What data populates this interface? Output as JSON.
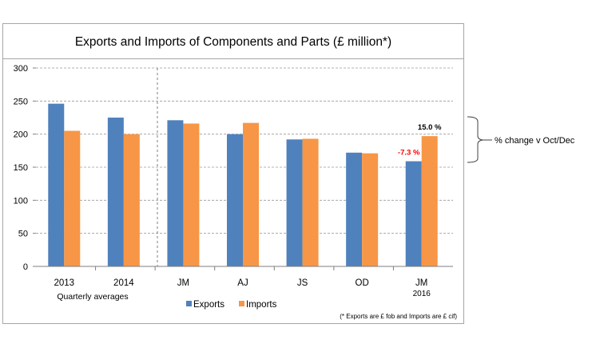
{
  "chart_data": {
    "type": "bar",
    "title": "Exports and Imports of Components and Parts (£ million*)",
    "categories": [
      "2013",
      "2014",
      "JM",
      "AJ",
      "JS",
      "OD",
      "JM"
    ],
    "category_sublabel": {
      "index": 6,
      "text": "2016"
    },
    "group_label": "Quarterly averages",
    "series": [
      {
        "name": "Exports",
        "color": "#4f81bd",
        "values": [
          246,
          225,
          221,
          200,
          192,
          172,
          159
        ]
      },
      {
        "name": "Imports",
        "color": "#f79646",
        "values": [
          205,
          200,
          216,
          217,
          193,
          171,
          197
        ]
      }
    ],
    "ylim": [
      0,
      300
    ],
    "yticks": [
      "300",
      "250",
      "200",
      "150",
      "100",
      "50",
      "0"
    ],
    "ytick_values": [
      300,
      250,
      200,
      150,
      100,
      50,
      0
    ],
    "annotations": [
      {
        "text": "-7.3 %",
        "color": "#ff0000",
        "series": 0,
        "category": 6
      },
      {
        "text": "15.0 %",
        "color": "#000000",
        "series": 1,
        "category": 6
      }
    ],
    "bracket_label": "% change v Oct/Dec",
    "footnote": "(* Exports are £ fob and Imports are £ cif)",
    "grid": true,
    "legend": "bottom"
  }
}
